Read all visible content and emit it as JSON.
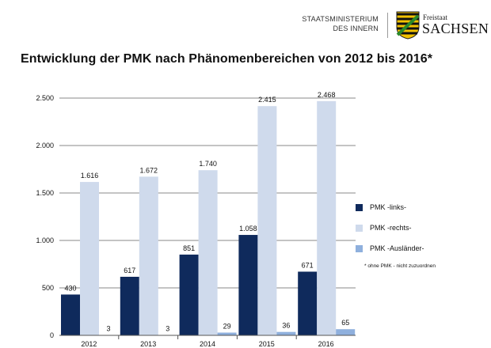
{
  "header": {
    "ministry_line1": "STAATSMINISTERIUM",
    "ministry_line2": "DES INNERN",
    "freistaat": "Freistaat",
    "sachsen": "SACHSEN"
  },
  "footnote": "* ohne PMK - nicht zuzuordnen",
  "chart_data": {
    "type": "bar",
    "title": "Entwicklung der PMK nach Phänomenbereichen von 2012 bis 2016*",
    "categories": [
      "2012",
      "2013",
      "2014",
      "2015",
      "2016"
    ],
    "series": [
      {
        "name": "PMK -links-",
        "values": [
          430,
          617,
          851,
          1058,
          671
        ],
        "labels": [
          "430",
          "617",
          "851",
          "1.058",
          "671"
        ],
        "color": "#0f2a5c"
      },
      {
        "name": "PMK -rechts-",
        "values": [
          1616,
          1672,
          1740,
          2415,
          2468
        ],
        "labels": [
          "1.616",
          "1.672",
          "1.740",
          "2.415",
          "2.468"
        ],
        "color": "#cfdaec"
      },
      {
        "name": "PMK -Ausländer-",
        "values": [
          3,
          3,
          29,
          36,
          65
        ],
        "labels": [
          "3",
          "3",
          "29",
          "36",
          "65"
        ],
        "color": "#8fb0dd"
      }
    ],
    "ylim": [
      0,
      2500
    ],
    "yticks": [
      0,
      500,
      1000,
      1500,
      2000,
      2500
    ],
    "ytick_labels": [
      "0",
      "500",
      "1.000",
      "1.500",
      "2.000",
      "2.500"
    ],
    "xlabel": "",
    "ylabel": "",
    "grid": true,
    "legend_position": "right"
  }
}
